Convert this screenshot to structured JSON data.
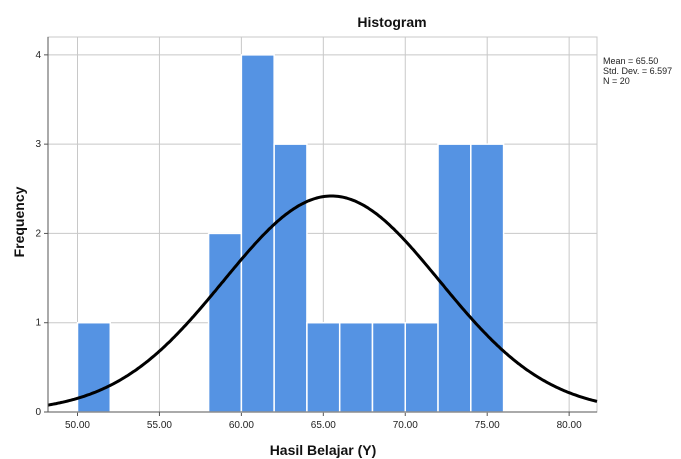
{
  "chart_data": {
    "type": "bar",
    "title": "Histogram",
    "xlabel": "Hasil Belajar (Y)",
    "ylabel": "Frequency",
    "bins": [
      {
        "start": 50,
        "end": 52,
        "count": 1
      },
      {
        "start": 58,
        "end": 60,
        "count": 2
      },
      {
        "start": 60,
        "end": 62,
        "count": 4
      },
      {
        "start": 62,
        "end": 64,
        "count": 3
      },
      {
        "start": 64,
        "end": 66,
        "count": 1
      },
      {
        "start": 66,
        "end": 68,
        "count": 1
      },
      {
        "start": 68,
        "end": 70,
        "count": 1
      },
      {
        "start": 70,
        "end": 72,
        "count": 1
      },
      {
        "start": 72,
        "end": 74,
        "count": 3
      },
      {
        "start": 74,
        "end": 76,
        "count": 3
      }
    ],
    "xlim": [
      48.2,
      81.7
    ],
    "ylim": [
      0,
      4.2
    ],
    "x_ticks": [
      "50.00",
      "55.00",
      "60.00",
      "65.00",
      "70.00",
      "75.00",
      "80.00"
    ],
    "x_tick_values": [
      50,
      55,
      60,
      65,
      70,
      75,
      80
    ],
    "y_ticks": [
      "0",
      "1",
      "2",
      "3",
      "4"
    ],
    "y_tick_values": [
      0,
      1,
      2,
      3,
      4
    ],
    "grid": true,
    "normal_curve": {
      "mean": 65.5,
      "std": 6.597,
      "n": 20,
      "bin_width": 2
    },
    "stats": {
      "mean": "Mean = 65.50",
      "std_dev": "Std. Dev. = 6.597",
      "n": "N = 20"
    },
    "colors": {
      "bar": "#5593e3",
      "bar_edge": "#ffffff",
      "grid": "#c8c8c8",
      "curve": "#000000",
      "axis": "#555555"
    }
  }
}
